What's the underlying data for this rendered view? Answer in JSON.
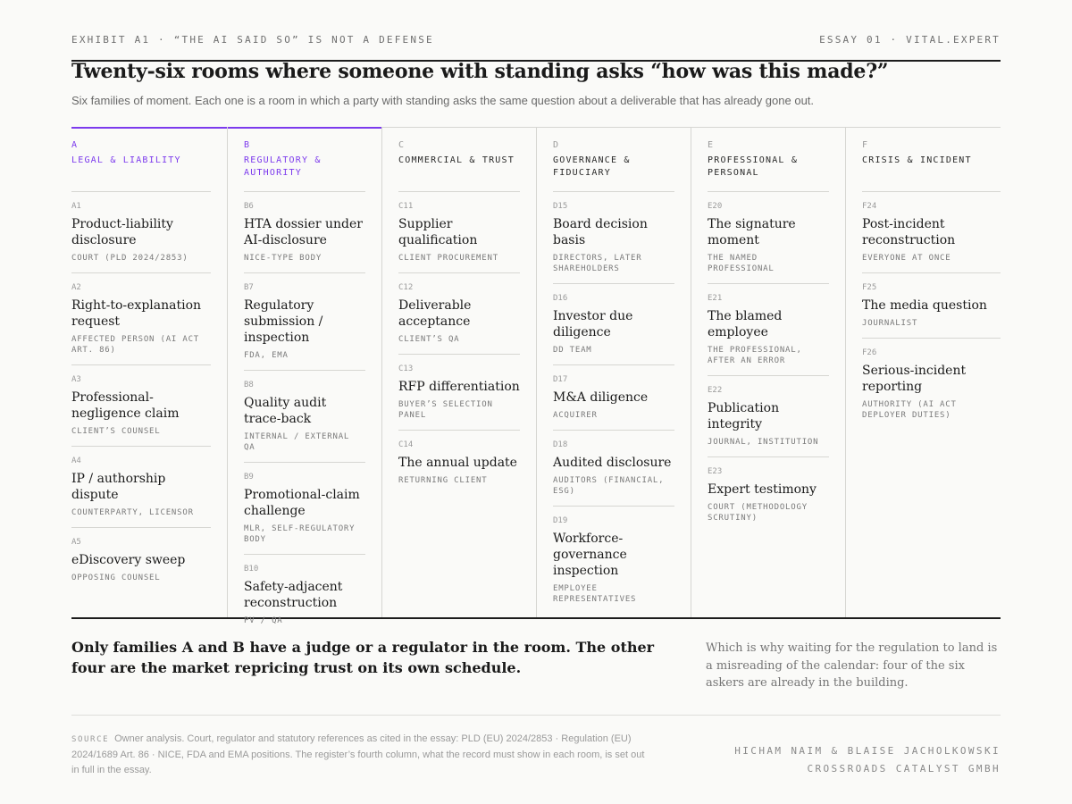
{
  "header": {
    "exhibit": "EXHIBIT A1 · “THE AI SAID SO” IS NOT A DEFENSE",
    "essay": "ESSAY 01 · VITAL.EXPERT",
    "title": "Twenty-six rooms where someone with standing asks “how was this made?”",
    "subtitle": "Six families of moment. Each one is a room in which a party with standing asks the same question about a deliverable that has already gone out."
  },
  "accent_color": "#7c3aed",
  "families": [
    {
      "letter": "A",
      "name": "LEGAL & LIABILITY",
      "highlighted": true,
      "items": [
        {
          "code": "A1",
          "title": "Product-liability disclosure",
          "asker": "COURT (PLD 2024/2853)"
        },
        {
          "code": "A2",
          "title": "Right-to-explanation request",
          "asker": "AFFECTED PERSON (AI ACT ART. 86)"
        },
        {
          "code": "A3",
          "title": "Professional-negligence claim",
          "asker": "CLIENT’S COUNSEL"
        },
        {
          "code": "A4",
          "title": "IP / authorship dispute",
          "asker": "COUNTERPARTY, LICENSOR"
        },
        {
          "code": "A5",
          "title": "eDiscovery sweep",
          "asker": "OPPOSING COUNSEL"
        }
      ]
    },
    {
      "letter": "B",
      "name": "REGULATORY & AUTHORITY",
      "highlighted": true,
      "items": [
        {
          "code": "B6",
          "title": "HTA dossier under AI-disclosure",
          "asker": "NICE-TYPE BODY"
        },
        {
          "code": "B7",
          "title": "Regulatory submission / inspection",
          "asker": "FDA, EMA"
        },
        {
          "code": "B8",
          "title": "Quality audit trace-back",
          "asker": "INTERNAL / EXTERNAL QA"
        },
        {
          "code": "B9",
          "title": "Promotional-claim challenge",
          "asker": "MLR, SELF-REGULATORY BODY"
        },
        {
          "code": "B10",
          "title": "Safety-adjacent reconstruction",
          "asker": "PV / QA"
        }
      ]
    },
    {
      "letter": "C",
      "name": "COMMERCIAL & TRUST",
      "highlighted": false,
      "items": [
        {
          "code": "C11",
          "title": "Supplier qualification",
          "asker": "CLIENT PROCUREMENT"
        },
        {
          "code": "C12",
          "title": "Deliverable acceptance",
          "asker": "CLIENT’S QA"
        },
        {
          "code": "C13",
          "title": "RFP differentiation",
          "asker": "BUYER’S SELECTION PANEL"
        },
        {
          "code": "C14",
          "title": "The annual update",
          "asker": "RETURNING CLIENT"
        }
      ]
    },
    {
      "letter": "D",
      "name": "GOVERNANCE & FIDUCIARY",
      "highlighted": false,
      "items": [
        {
          "code": "D15",
          "title": "Board decision basis",
          "asker": "DIRECTORS, LATER SHAREHOLDERS"
        },
        {
          "code": "D16",
          "title": "Investor due diligence",
          "asker": "DD TEAM"
        },
        {
          "code": "D17",
          "title": "M&A diligence",
          "asker": "ACQUIRER"
        },
        {
          "code": "D18",
          "title": "Audited disclosure",
          "asker": "AUDITORS (FINANCIAL, ESG)"
        },
        {
          "code": "D19",
          "title": "Workforce-governance inspection",
          "asker": "EMPLOYEE REPRESENTATIVES"
        }
      ]
    },
    {
      "letter": "E",
      "name": "PROFESSIONAL & PERSONAL",
      "highlighted": false,
      "items": [
        {
          "code": "E20",
          "title": "The signature moment",
          "asker": "THE NAMED PROFESSIONAL"
        },
        {
          "code": "E21",
          "title": "The blamed employee",
          "asker": "THE PROFESSIONAL, AFTER AN ERROR"
        },
        {
          "code": "E22",
          "title": "Publication integrity",
          "asker": "JOURNAL, INSTITUTION"
        },
        {
          "code": "E23",
          "title": "Expert testimony",
          "asker": "COURT (METHODOLOGY SCRUTINY)"
        }
      ]
    },
    {
      "letter": "F",
      "name": "CRISIS & INCIDENT",
      "highlighted": false,
      "items": [
        {
          "code": "F24",
          "title": "Post-incident reconstruction",
          "asker": "EVERYONE AT ONCE"
        },
        {
          "code": "F25",
          "title": "The media question",
          "asker": "JOURNALIST"
        },
        {
          "code": "F26",
          "title": "Serious-incident reporting",
          "asker": "AUTHORITY (AI ACT DEPLOYER DUTIES)"
        }
      ]
    }
  ],
  "footer": {
    "takeaway": "Only families A and B have a judge or a regulator in the room. The other four are the market repricing trust on its own schedule.",
    "aside": "Which is why waiting for the regulation to land is a misreading of the calendar: four of the six askers are already in the building.",
    "source_label": "SOURCE",
    "source_text": "Owner analysis. Court, regulator and statutory references as cited in the essay: PLD (EU) 2024/2853 · Regulation (EU) 2024/1689 Art. 86 · NICE, FDA and EMA positions. The register’s fourth column, what the record must show in each room, is set out in full in the essay.",
    "authors": "HICHAM NAIM & BLAISE JACHOLKOWSKI",
    "company": "CROSSROADS CATALYST GMBH"
  }
}
